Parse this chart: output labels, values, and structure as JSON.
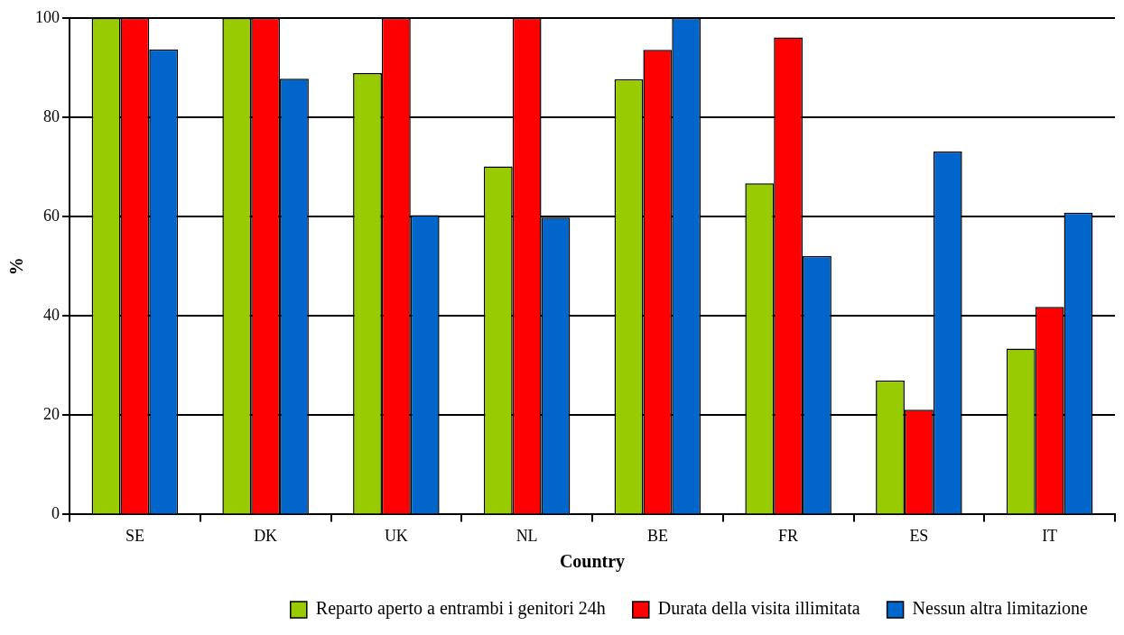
{
  "chart_data": {
    "type": "bar",
    "xlabel": "Country",
    "ylabel": "%",
    "categories": [
      "SE",
      "DK",
      "UK",
      "NL",
      "BE",
      "FR",
      "ES",
      "IT"
    ],
    "series": [
      {
        "name": "Reparto aperto a entrambi i genitori 24h",
        "color": "#99cc00",
        "values": [
          100,
          100,
          88.9,
          70.1,
          87.7,
          66.7,
          27.0,
          33.4
        ]
      },
      {
        "name": "Durata della visita illimitata",
        "color": "#ff0000",
        "values": [
          100,
          100,
          100,
          100,
          93.6,
          96.1,
          21.1,
          41.8
        ]
      },
      {
        "name": "Nessun altra limitazione",
        "color": "#0066cc",
        "values": [
          93.7,
          87.8,
          60.3,
          59.8,
          100,
          52.1,
          73.1,
          60.8
        ]
      }
    ],
    "ylim": [
      0,
      100
    ],
    "yticks": [
      0,
      20,
      40,
      60,
      80,
      100
    ],
    "grid": "y",
    "legend": "bottom right"
  }
}
